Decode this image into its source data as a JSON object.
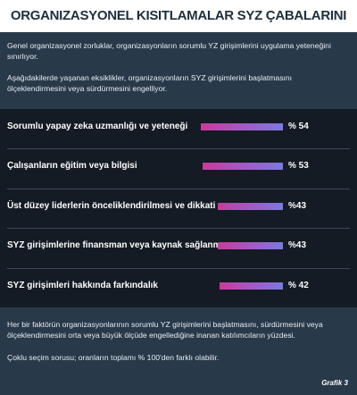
{
  "title": "ORGANIZASYONEL KISITLAMALAR SYZ ÇABALARINI SINIRLIYOR",
  "intro": [
    "Genel organizasyonel zorluklar, organizasyonların sorumlu YZ girişimlerini uygulama yeteneğini sınırlıyor.",
    "Aşağıdakilerde yaşanan eksiklikler, organizasyonların SYZ girişimlerini başlatmasını ölçeklendirmesini veya sürdürmesini engelliyor."
  ],
  "footer": [
    "Her bir faktörün organizasyonlarının sorumlu YZ girişimlerini başlatmasını, sürdürmesini veya ölçeklendirmesini orta veya büyük ölçüde engellediğine inanan katılımcıların yüzdesi.",
    "Çoklu seçim sorusu; oranların toplamı % 100'den farklı olabilir."
  ],
  "caption": "Grafik 3",
  "colors": {
    "panel": "#28394a",
    "chart_bg": "#141b24",
    "bar_start": "#c93a9c",
    "bar_end": "#7a7ae0",
    "title": "#1f2e3c"
  },
  "chart_data": {
    "type": "bar",
    "orientation": "horizontal",
    "categories": [
      "Sorumlu yapay zeka uzmanlığı ve yeteneği",
      "Çalışanların eğitim veya bilgisi",
      "Üst düzey liderlerin  önceliklendirilmesi  ve dikkati",
      "SYZ girişimlerine finansman veya kaynak sağlanması",
      "SYZ girişimleri hakkında farkındalık"
    ],
    "values": [
      54,
      53,
      43,
      43,
      42
    ],
    "value_labels": [
      "% 54",
      "% 53",
      "%43",
      "%43",
      "% 42"
    ],
    "unit": "%"
  }
}
